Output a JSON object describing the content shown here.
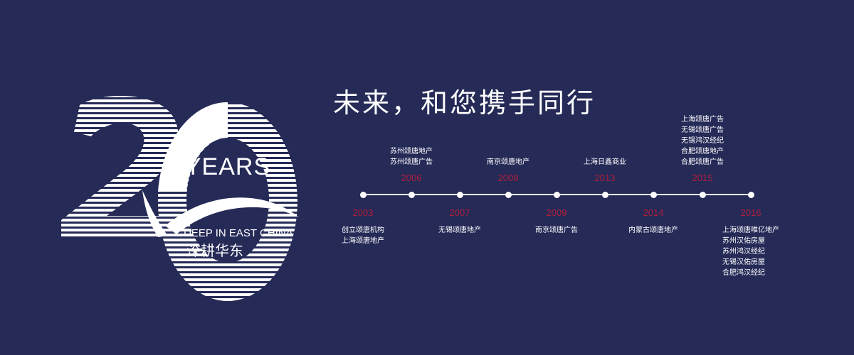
{
  "logo": {
    "years": "YEARS",
    "tagline": "DEEP IN EAST CHINA",
    "name_cn": "深耕华东"
  },
  "slogan": "未来，和您携手同行",
  "timeline": [
    {
      "year": "2003",
      "entries": [
        "创立颂唐机构",
        "上海颂唐地产"
      ]
    },
    {
      "year": "2006",
      "entries": [
        "苏州颂唐地产",
        "苏州颂唐广告"
      ]
    },
    {
      "year": "2007",
      "entries": [
        "无锡颂唐地产"
      ]
    },
    {
      "year": "2008",
      "entries": [
        "南京颂唐地产"
      ]
    },
    {
      "year": "2009",
      "entries": [
        "南京颂唐广告"
      ]
    },
    {
      "year": "2013",
      "entries": [
        "上海日鑫商业"
      ]
    },
    {
      "year": "2014",
      "entries": [
        "内蒙古颂唐地产"
      ]
    },
    {
      "year": "2015",
      "entries": [
        "上海颂唐广告",
        "无锡颂唐广告",
        "无锡鸿汉经纪",
        "合肥颂唐地产",
        "合肥颂唐广告"
      ]
    },
    {
      "year": "2016",
      "entries": [
        "上海颂唐唯亿地产",
        "苏州汉佑房屋",
        "苏州鸿汉经纪",
        "无锡汉佑房屋",
        "合肥鸿汉经纪"
      ]
    }
  ]
}
